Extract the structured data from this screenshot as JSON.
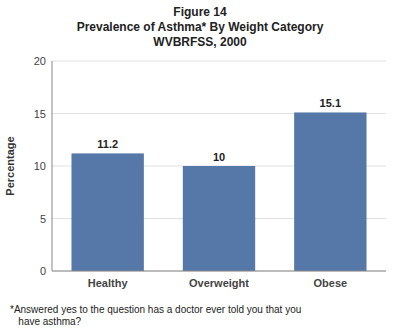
{
  "chart_data": {
    "type": "bar",
    "title": "Figure 14\nPrevalence of Asthma* By Weight Category\nWVBRFSS, 2000",
    "y_label": "Percentage",
    "categories": [
      "Healthy",
      "Overweight",
      "Obese"
    ],
    "values": [
      11.2,
      10,
      15.1
    ],
    "color": "#5578a8",
    "ylim": [
      0,
      20
    ],
    "yticks": [
      0,
      5,
      10,
      15,
      20
    ],
    "grid": true,
    "data_labels": true,
    "annotations": [
      "*Answered yes to the question has a doctor ever told you that you\n   have asthma?"
    ]
  }
}
